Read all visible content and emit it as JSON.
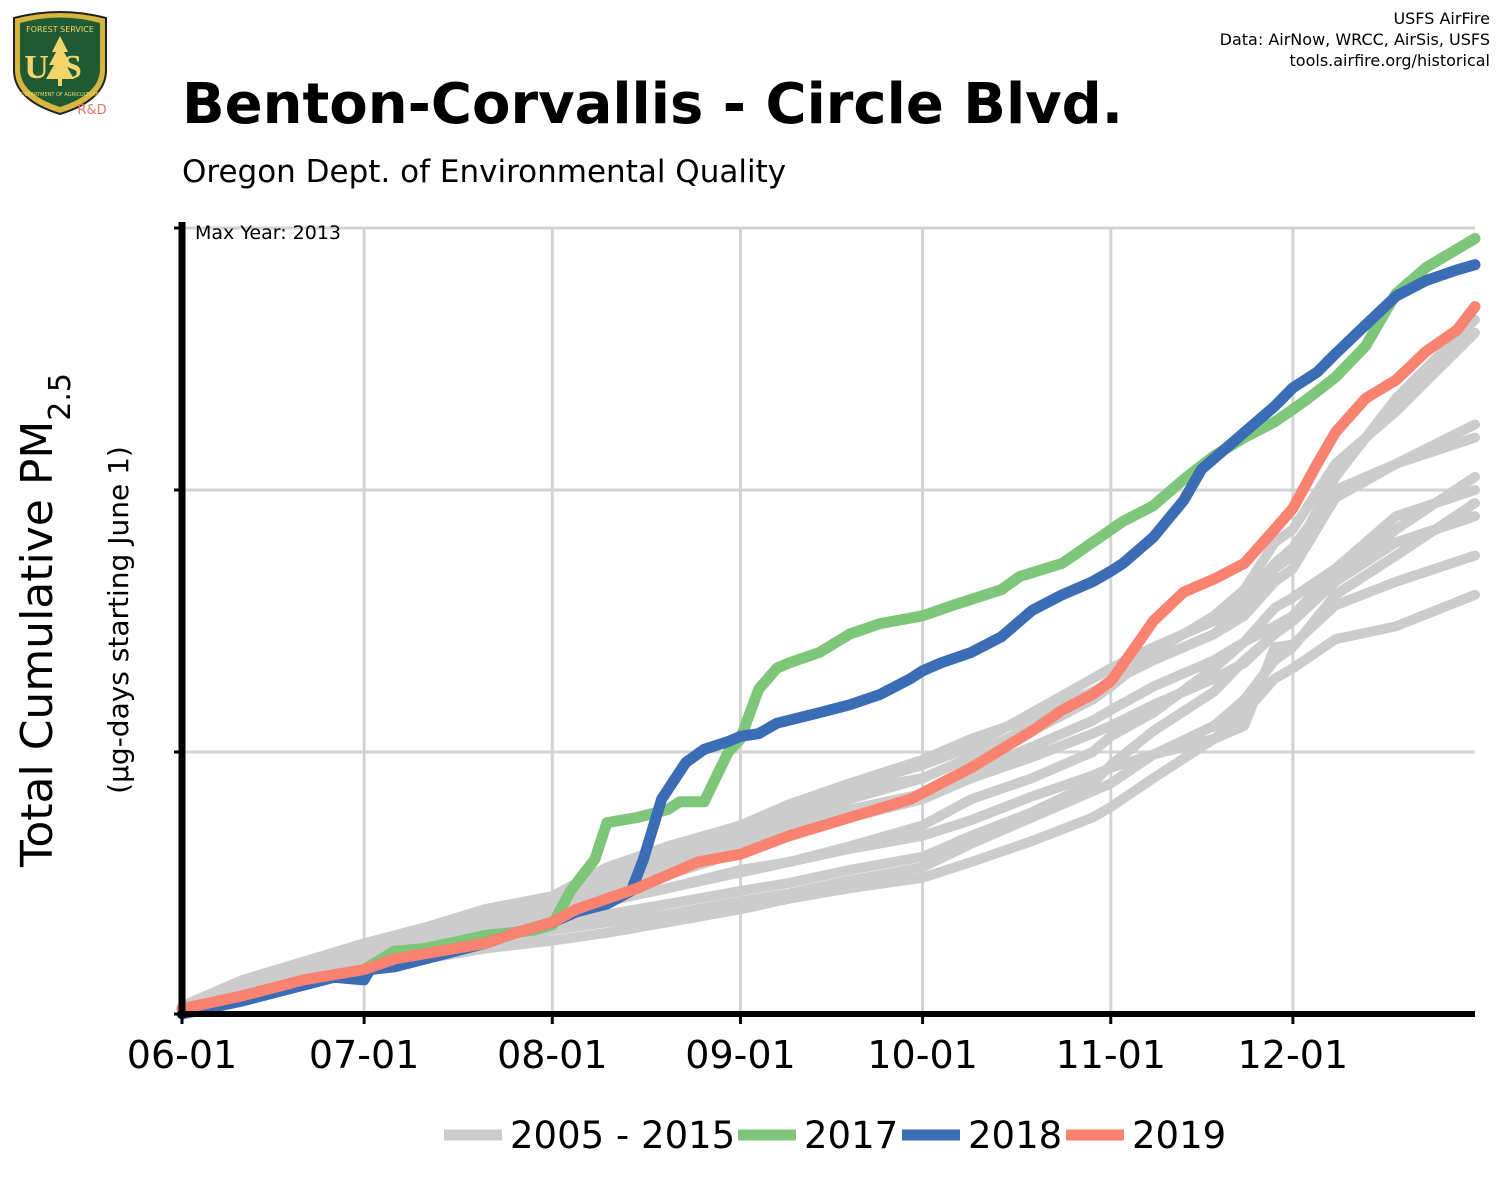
{
  "logo": {
    "agency_top": "FOREST SERVICE",
    "agency_bottom": "DEPARTMENT OF AGRICULTURE",
    "letters": "US",
    "badge": "R&D"
  },
  "credits": {
    "line1": "USFS AirFire",
    "line2": "Data: AirNow, WRCC, AirSis, USFS",
    "line3": "tools.airfire.org/historical"
  },
  "colors": {
    "historical": "#cccccc",
    "y2017": "#7dc67a",
    "y2018": "#3a6db5",
    "y2019": "#fa8270",
    "grid": "#d3d3d3",
    "axis": "#000000"
  },
  "chart_data": {
    "type": "line",
    "title": "Benton-Corvallis - Circle Blvd.",
    "subtitle": "Oregon Dept. of Environmental Quality",
    "ylabel_main": "Total Cumulative PM",
    "ylabel_sub": "2.5",
    "ylabel_units": "(µg-days starting June 1)",
    "annotation": "Max Year: 2013",
    "x_ticks": [
      "06-01",
      "07-01",
      "08-01",
      "09-01",
      "10-01",
      "11-01",
      "12-01"
    ],
    "x_tick_days": [
      0,
      30,
      61,
      92,
      122,
      153,
      183
    ],
    "xlim": [
      0,
      213
    ],
    "ylim": [
      0,
      3
    ],
    "y_grid": [
      1,
      2,
      3
    ],
    "y_ticks_labeled": false,
    "grid": true,
    "legend": {
      "position": "bottom",
      "entries": [
        {
          "label": "2005 - 2015",
          "color": "#cccccc"
        },
        {
          "label": "2017",
          "color": "#7dc67a"
        },
        {
          "label": "2018",
          "color": "#3a6db5"
        },
        {
          "label": "2019",
          "color": "#fa8270"
        }
      ]
    },
    "series": [
      {
        "group": "historical",
        "x": [
          0,
          10,
          20,
          30,
          40,
          50,
          61,
          70,
          80,
          92,
          100,
          110,
          122,
          130,
          140,
          150,
          153,
          160,
          170,
          175,
          180,
          183,
          190,
          200,
          213
        ],
        "y": [
          0.02,
          0.11,
          0.17,
          0.25,
          0.3,
          0.34,
          0.39,
          0.43,
          0.48,
          0.55,
          0.58,
          0.63,
          0.68,
          0.74,
          0.83,
          0.91,
          0.94,
          0.99,
          1.05,
          1.1,
          1.4,
          1.41,
          1.56,
          1.65,
          1.75
        ]
      },
      {
        "group": "historical",
        "x": [
          0,
          10,
          20,
          30,
          40,
          50,
          61,
          70,
          80,
          92,
          100,
          110,
          122,
          130,
          140,
          150,
          153,
          160,
          170,
          175,
          180,
          183,
          190,
          200,
          213
        ],
        "y": [
          0.03,
          0.12,
          0.17,
          0.26,
          0.33,
          0.4,
          0.45,
          0.56,
          0.64,
          0.72,
          0.8,
          0.87,
          0.95,
          1.02,
          1.15,
          1.28,
          1.32,
          1.4,
          1.5,
          1.58,
          1.72,
          1.78,
          2.0,
          2.1,
          2.2
        ]
      },
      {
        "group": "historical",
        "x": [
          0,
          10,
          20,
          30,
          40,
          50,
          61,
          70,
          80,
          92,
          100,
          110,
          122,
          130,
          140,
          150,
          153,
          160,
          170,
          175,
          180,
          183,
          190,
          200,
          213
        ],
        "y": [
          0.02,
          0.1,
          0.15,
          0.22,
          0.27,
          0.32,
          0.37,
          0.43,
          0.48,
          0.54,
          0.58,
          0.64,
          0.72,
          0.82,
          0.9,
          1.0,
          1.06,
          1.15,
          1.32,
          1.42,
          1.55,
          1.59,
          1.7,
          1.8,
          1.9
        ]
      },
      {
        "group": "historical",
        "x": [
          0,
          10,
          20,
          30,
          40,
          50,
          61,
          70,
          80,
          92,
          100,
          110,
          122,
          130,
          140,
          150,
          153,
          160,
          170,
          175,
          180,
          183,
          190,
          200,
          213
        ],
        "y": [
          0.03,
          0.13,
          0.2,
          0.27,
          0.33,
          0.4,
          0.45,
          0.52,
          0.6,
          0.7,
          0.8,
          0.88,
          0.97,
          1.05,
          1.13,
          1.23,
          1.27,
          1.35,
          1.45,
          1.52,
          1.65,
          1.7,
          1.97,
          2.1,
          2.25
        ]
      },
      {
        "group": "historical",
        "x": [
          0,
          10,
          20,
          30,
          40,
          50,
          61,
          70,
          80,
          92,
          100,
          110,
          122,
          130,
          140,
          150,
          153,
          160,
          170,
          175,
          180,
          183,
          190,
          200,
          213
        ],
        "y": [
          0.02,
          0.09,
          0.15,
          0.2,
          0.25,
          0.3,
          0.34,
          0.38,
          0.42,
          0.47,
          0.5,
          0.55,
          0.6,
          0.68,
          0.77,
          0.88,
          0.95,
          1.08,
          1.23,
          1.35,
          1.45,
          1.5,
          1.65,
          1.8,
          1.9
        ]
      },
      {
        "group": "historical",
        "x": [
          0,
          10,
          20,
          30,
          40,
          50,
          61,
          70,
          80,
          92,
          100,
          110,
          122,
          130,
          140,
          150,
          153,
          160,
          170,
          175,
          180,
          183,
          190,
          200,
          213
        ],
        "y": [
          0.02,
          0.1,
          0.16,
          0.24,
          0.3,
          0.36,
          0.41,
          0.47,
          0.55,
          0.63,
          0.72,
          0.78,
          0.84,
          0.92,
          1.02,
          1.12,
          1.16,
          1.25,
          1.35,
          1.42,
          1.48,
          1.52,
          1.7,
          1.9,
          2.0
        ]
      },
      {
        "group": "historical",
        "x": [
          0,
          10,
          20,
          30,
          40,
          50,
          61,
          70,
          80,
          92,
          100,
          110,
          122,
          130,
          140,
          150,
          153,
          160,
          170,
          175,
          180,
          183,
          190,
          200,
          213
        ],
        "y": [
          0.02,
          0.08,
          0.14,
          0.19,
          0.24,
          0.28,
          0.32,
          0.35,
          0.38,
          0.43,
          0.46,
          0.51,
          0.56,
          0.65,
          0.75,
          0.85,
          0.88,
          0.99,
          1.1,
          1.2,
          1.35,
          1.4,
          1.6,
          1.75,
          1.95
        ]
      },
      {
        "group": "historical",
        "x": [
          0,
          10,
          20,
          30,
          40,
          50,
          61,
          70,
          80,
          92,
          100,
          110,
          122,
          130,
          140,
          150,
          153,
          160,
          170,
          175,
          180,
          183,
          190,
          200,
          213
        ],
        "y": [
          0.02,
          0.1,
          0.16,
          0.24,
          0.28,
          0.35,
          0.42,
          0.5,
          0.58,
          0.68,
          0.76,
          0.85,
          0.9,
          0.98,
          1.1,
          1.22,
          1.28,
          1.35,
          1.45,
          1.55,
          1.7,
          1.75,
          2.05,
          2.35,
          2.65
        ]
      },
      {
        "group": "historical",
        "x": [
          0,
          10,
          20,
          30,
          40,
          50,
          61,
          70,
          80,
          92,
          100,
          110,
          122,
          130,
          140,
          150,
          153,
          160,
          170,
          175,
          180,
          183,
          190,
          200,
          213
        ],
        "y": [
          0.01,
          0.07,
          0.12,
          0.17,
          0.21,
          0.25,
          0.28,
          0.31,
          0.35,
          0.4,
          0.44,
          0.48,
          0.52,
          0.58,
          0.66,
          0.75,
          0.79,
          0.9,
          1.05,
          1.15,
          1.28,
          1.32,
          1.43,
          1.48,
          1.6
        ]
      },
      {
        "group": "historical",
        "x": [
          0,
          10,
          20,
          30,
          40,
          50,
          61,
          70,
          80,
          92,
          100,
          110,
          122,
          130,
          140,
          150,
          153,
          160,
          170,
          175,
          180,
          183,
          190,
          200,
          213
        ],
        "y": [
          0.02,
          0.1,
          0.16,
          0.23,
          0.28,
          0.34,
          0.39,
          0.46,
          0.53,
          0.62,
          0.68,
          0.75,
          0.82,
          0.9,
          0.98,
          1.07,
          1.1,
          1.18,
          1.28,
          1.34,
          1.45,
          1.5,
          1.65,
          1.85,
          2.05
        ]
      },
      {
        "group": "historical",
        "x": [
          0,
          10,
          20,
          30,
          40,
          50,
          61,
          70,
          80,
          92,
          100,
          110,
          122,
          130,
          140,
          150,
          153,
          160,
          170,
          175,
          180,
          183,
          190,
          200,
          213
        ],
        "y": [
          0.03,
          0.12,
          0.19,
          0.26,
          0.31,
          0.37,
          0.43,
          0.49,
          0.57,
          0.66,
          0.74,
          0.82,
          0.9,
          0.98,
          1.08,
          1.2,
          1.25,
          1.38,
          1.52,
          1.62,
          1.8,
          1.85,
          2.1,
          2.3,
          2.6
        ]
      },
      {
        "group": "y2017",
        "x": [
          0,
          10,
          20,
          30,
          35,
          40,
          50,
          58,
          61,
          64,
          68,
          70,
          75,
          80,
          82,
          86,
          90,
          92,
          95,
          98,
          100,
          105,
          110,
          115,
          122,
          127,
          135,
          138,
          145,
          150,
          155,
          160,
          165,
          170,
          175,
          180,
          185,
          190,
          195,
          200,
          205,
          213
        ],
        "y": [
          0.02,
          0.06,
          0.11,
          0.17,
          0.24,
          0.25,
          0.3,
          0.32,
          0.34,
          0.47,
          0.59,
          0.73,
          0.75,
          0.78,
          0.81,
          0.81,
          1.0,
          1.05,
          1.24,
          1.32,
          1.34,
          1.38,
          1.45,
          1.49,
          1.52,
          1.56,
          1.62,
          1.67,
          1.72,
          1.8,
          1.88,
          1.94,
          2.04,
          2.13,
          2.2,
          2.26,
          2.34,
          2.43,
          2.55,
          2.75,
          2.85,
          2.96
        ]
      },
      {
        "group": "y2018",
        "x": [
          0,
          10,
          20,
          25,
          30,
          31,
          35,
          40,
          50,
          55,
          61,
          65,
          70,
          74,
          76,
          79,
          83,
          86,
          90,
          92,
          95,
          98,
          105,
          110,
          115,
          120,
          122,
          125,
          130,
          135,
          140,
          145,
          150,
          153,
          155,
          160,
          165,
          168,
          170,
          175,
          180,
          183,
          187,
          190,
          195,
          200,
          205,
          210,
          213
        ],
        "y": [
          0.0,
          0.05,
          0.11,
          0.14,
          0.13,
          0.17,
          0.18,
          0.21,
          0.27,
          0.31,
          0.35,
          0.39,
          0.42,
          0.47,
          0.59,
          0.82,
          0.96,
          1.01,
          1.04,
          1.06,
          1.07,
          1.11,
          1.15,
          1.18,
          1.22,
          1.28,
          1.31,
          1.34,
          1.38,
          1.44,
          1.54,
          1.6,
          1.65,
          1.69,
          1.72,
          1.82,
          1.96,
          2.08,
          2.12,
          2.22,
          2.32,
          2.39,
          2.45,
          2.52,
          2.63,
          2.74,
          2.8,
          2.84,
          2.86
        ]
      },
      {
        "group": "y2019",
        "x": [
          0,
          10,
          20,
          30,
          35,
          40,
          50,
          55,
          61,
          65,
          70,
          75,
          80,
          85,
          92,
          100,
          110,
          120,
          125,
          130,
          140,
          145,
          150,
          153,
          157,
          160,
          165,
          170,
          175,
          180,
          183,
          187,
          190,
          195,
          200,
          205,
          210,
          213
        ],
        "y": [
          0.02,
          0.07,
          0.13,
          0.17,
          0.21,
          0.23,
          0.27,
          0.31,
          0.35,
          0.4,
          0.44,
          0.48,
          0.53,
          0.58,
          0.61,
          0.68,
          0.75,
          0.82,
          0.88,
          0.94,
          1.08,
          1.16,
          1.22,
          1.27,
          1.4,
          1.5,
          1.61,
          1.66,
          1.72,
          1.85,
          1.93,
          2.1,
          2.22,
          2.35,
          2.42,
          2.53,
          2.61,
          2.7
        ]
      }
    ]
  }
}
